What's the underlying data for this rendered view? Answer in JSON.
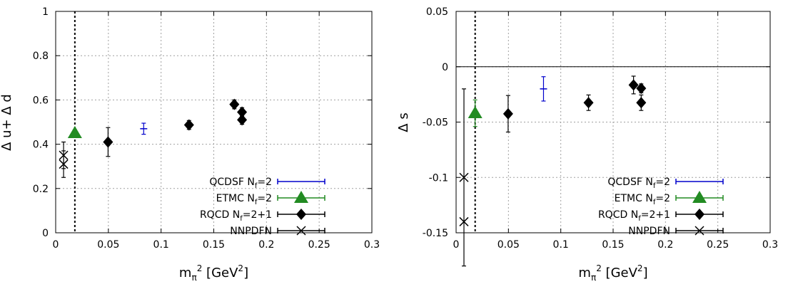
{
  "chart_data": [
    {
      "type": "scatter",
      "title": "",
      "xlabel": "mπ² [GeV²]",
      "ylabel": "Δ u+ Δ d",
      "xlim": [
        0,
        0.3
      ],
      "ylim": [
        0,
        1
      ],
      "xticks": [
        "0",
        "0.05",
        "0.1",
        "0.15",
        "0.2",
        "0.25",
        "0.3"
      ],
      "yticks": [
        "0",
        "0.2",
        "0.4",
        "0.6",
        "0.8",
        "1"
      ],
      "grid": true,
      "legend_position": "bottom-right",
      "physical_point_line_x": 0.0182,
      "zero_line": false,
      "series": [
        {
          "name": "QCDSF N_f=2",
          "marker": "dash",
          "color": "#0000cc",
          "points": [
            {
              "x": 0.0835,
              "y": 0.47,
              "err": 0.025
            }
          ]
        },
        {
          "name": "ETMC N_f=2",
          "marker": "triangle",
          "color": "#228b22",
          "points": [
            {
              "x": 0.0182,
              "y": 0.45,
              "err": 0.015
            }
          ]
        },
        {
          "name": "RQCD N_f=2+1",
          "marker": "diamond",
          "color": "#000000",
          "points": [
            {
              "x": 0.0497,
              "y": 0.41,
              "err": 0.065
            },
            {
              "x": 0.1265,
              "y": 0.487,
              "err": 0.02
            },
            {
              "x": 0.1695,
              "y": 0.58,
              "err": 0.02
            },
            {
              "x": 0.1768,
              "y": 0.545,
              "err": 0.02
            },
            {
              "x": 0.1768,
              "y": 0.51,
              "err": 0.02
            }
          ]
        },
        {
          "name": "NNPDF",
          "marker": "cross",
          "color": "#000000",
          "points": [
            {
              "x": 0.0075,
              "y": 0.35,
              "err": 0.06
            },
            {
              "x": 0.0075,
              "y": 0.31,
              "err": 0.06
            }
          ]
        }
      ]
    },
    {
      "type": "scatter",
      "title": "",
      "xlabel": "mπ² [GeV²]",
      "ylabel": "Δ s",
      "xlim": [
        0,
        0.3
      ],
      "ylim": [
        -0.15,
        0.05
      ],
      "xticks": [
        "0",
        "0.05",
        "0.1",
        "0.15",
        "0.2",
        "0.25",
        "0.3"
      ],
      "yticks": [
        "-0.15",
        "-0.1",
        "-0.05",
        "0",
        "0.05"
      ],
      "grid": true,
      "legend_position": "bottom-right",
      "physical_point_line_x": 0.0182,
      "zero_line": true,
      "series": [
        {
          "name": "QCDSF N_f=2",
          "marker": "dash",
          "color": "#0000cc",
          "points": [
            {
              "x": 0.0835,
              "y": -0.02,
              "err": 0.011
            }
          ]
        },
        {
          "name": "ETMC N_f=2",
          "marker": "triangle",
          "color": "#228b22",
          "points": [
            {
              "x": 0.0182,
              "y": -0.042,
              "err": 0.012
            }
          ]
        },
        {
          "name": "RQCD N_f=2+1",
          "marker": "diamond",
          "color": "#000000",
          "points": [
            {
              "x": 0.0497,
              "y": -0.0425,
              "err": 0.0165
            },
            {
              "x": 0.1265,
              "y": -0.0325,
              "err": 0.007
            },
            {
              "x": 0.1695,
              "y": -0.0165,
              "err": 0.008
            },
            {
              "x": 0.1768,
              "y": -0.0195,
              "err": 0.004
            },
            {
              "x": 0.1768,
              "y": -0.0325,
              "err": 0.007
            }
          ]
        },
        {
          "name": "NNPDF",
          "marker": "cross",
          "color": "#000000",
          "points": [
            {
              "x": 0.0075,
              "y": -0.1,
              "err": 0.08
            },
            {
              "x": 0.0075,
              "y": -0.14,
              "err": 0.0
            }
          ]
        }
      ]
    }
  ]
}
